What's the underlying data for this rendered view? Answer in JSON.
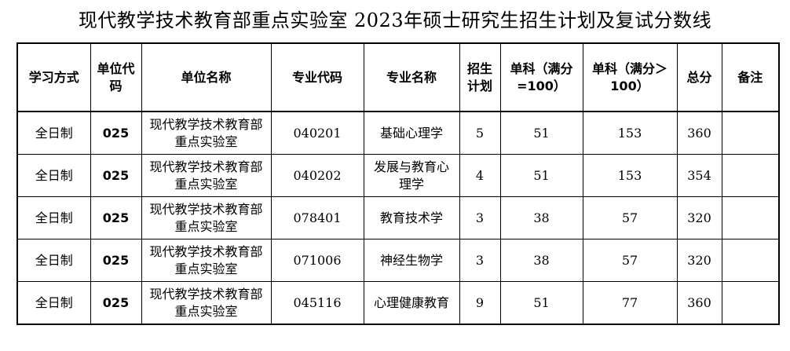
{
  "title": "现代教学技术教育部重点实验室  2023年硕士研究生招生计划及复试分数线",
  "headers": {
    "study_mode": "学习方式",
    "unit_code": "单位代码",
    "unit_name": "单位名称",
    "major_code": "专业代码",
    "major_name": "专业名称",
    "quota": "招生计划",
    "single_100": "单科（满分=100）",
    "single_gt100": "单科（满分＞100）",
    "total": "总分",
    "remarks": "备注"
  },
  "rows": [
    {
      "study_mode": "全日制",
      "unit_code": "025",
      "unit_name": "现代教学技术教育部重点实验室",
      "major_code": "040201",
      "major_name": "基础心理学",
      "quota": "5",
      "single_100": "51",
      "single_gt100": "153",
      "total": "360",
      "remarks": ""
    },
    {
      "study_mode": "全日制",
      "unit_code": "025",
      "unit_name": "现代教学技术教育部重点实验室",
      "major_code": "040202",
      "major_name": "发展与教育心理学",
      "quota": "4",
      "single_100": "51",
      "single_gt100": "153",
      "total": "354",
      "remarks": ""
    },
    {
      "study_mode": "全日制",
      "unit_code": "025",
      "unit_name": "现代教学技术教育部重点实验室",
      "major_code": "078401",
      "major_name": "教育技术学",
      "quota": "3",
      "single_100": "38",
      "single_gt100": "57",
      "total": "320",
      "remarks": ""
    },
    {
      "study_mode": "全日制",
      "unit_code": "025",
      "unit_name": "现代教学技术教育部重点实验室",
      "major_code": "071006",
      "major_name": "神经生物学",
      "quota": "3",
      "single_100": "38",
      "single_gt100": "57",
      "total": "320",
      "remarks": ""
    },
    {
      "study_mode": "全日制",
      "unit_code": "025",
      "unit_name": "现代教学技术教育部重点实验室",
      "major_code": "045116",
      "major_name": "心理健康教育",
      "quota": "9",
      "single_100": "51",
      "single_gt100": "77",
      "total": "360",
      "remarks": ""
    }
  ]
}
